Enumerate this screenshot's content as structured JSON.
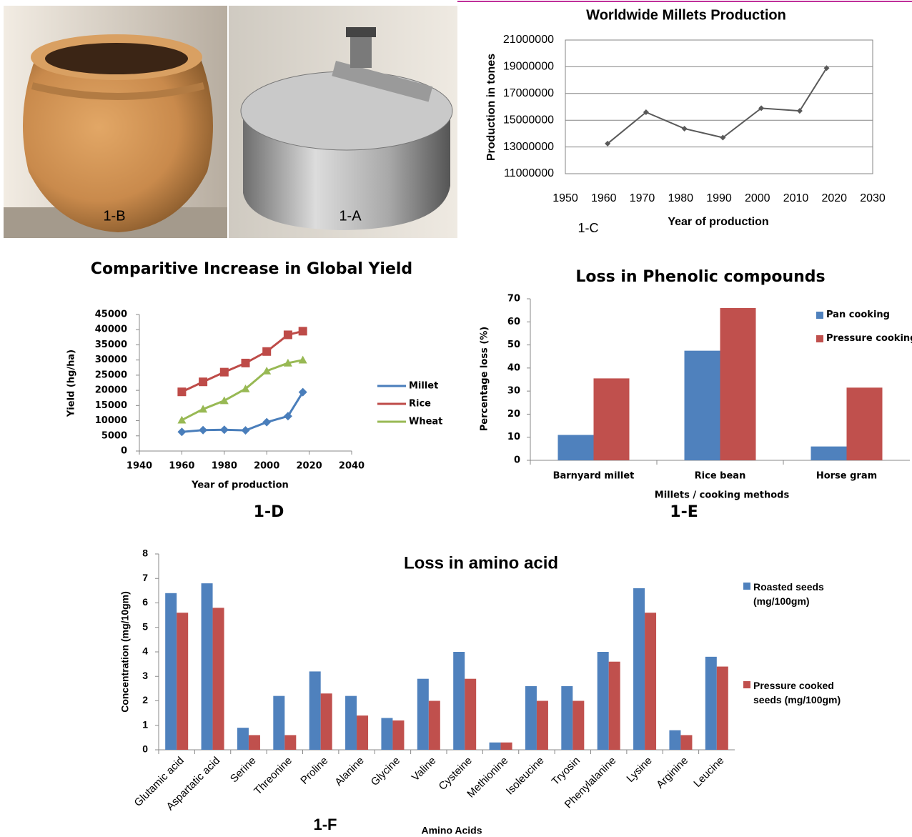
{
  "photos": [
    {
      "label": "1-B"
    },
    {
      "label": "1-A"
    }
  ],
  "chart_data": [
    {
      "type": "line",
      "title": "Worldwide Millets Production",
      "y_label": "Production in tones",
      "x_label": "Year of production",
      "caption": "1-C",
      "x": [
        1961,
        1971,
        1981,
        1991,
        2001,
        2011,
        2018
      ],
      "values": [
        13250000,
        15600000,
        14370000,
        13700000,
        15900000,
        15700000,
        18900000
      ],
      "color": "#595959",
      "xlim": [
        1950,
        2030
      ],
      "xticks": [
        1950,
        1960,
        1970,
        1980,
        1990,
        2000,
        2010,
        2020,
        2030
      ],
      "ylim": [
        11000000,
        21000000
      ],
      "yticks": [
        11000000,
        13000000,
        15000000,
        17000000,
        19000000,
        21000000
      ],
      "grid": true
    },
    {
      "type": "line",
      "title": "Comparitive Increase in Global Yield",
      "y_label": "Yield (hg/ha)",
      "x_label": "Year of production",
      "caption": "1-D",
      "x": [
        1960,
        1970,
        1980,
        1990,
        2000,
        2010,
        2017
      ],
      "series": [
        {
          "name": "Millet",
          "color": "#4a7ebb",
          "values": [
            6300,
            6900,
            7000,
            6800,
            9500,
            11500,
            19400
          ]
        },
        {
          "name": "Rice",
          "color": "#be4b48",
          "values": [
            19500,
            22800,
            26000,
            29000,
            32800,
            38300,
            39500
          ]
        },
        {
          "name": "Wheat",
          "color": "#98b954",
          "values": [
            10200,
            13800,
            16600,
            20500,
            26400,
            29000,
            30000
          ]
        }
      ],
      "xlim": [
        1940,
        2040
      ],
      "xticks": [
        1940,
        1960,
        1980,
        2000,
        2020,
        2040
      ],
      "ylim": [
        0,
        45000
      ],
      "yticks": [
        0,
        5000,
        10000,
        15000,
        20000,
        25000,
        30000,
        35000,
        40000,
        45000
      ],
      "grid": false,
      "legend": "right"
    },
    {
      "type": "bar",
      "title": "Loss in Phenolic compounds",
      "y_label": "Percentage loss (%)",
      "x_label": "Millets / cooking methods",
      "caption": "1-E",
      "categories": [
        "Barnyard millet",
        "Rice bean",
        "Horse gram"
      ],
      "series": [
        {
          "name": "Pan cooking",
          "color": "#4f81bd",
          "values": [
            11,
            47.5,
            6
          ]
        },
        {
          "name": "Pressure cooking",
          "color": "#c0504d",
          "values": [
            35.5,
            66,
            31.5
          ]
        }
      ],
      "ylim": [
        0,
        70
      ],
      "yticks": [
        0,
        10,
        20,
        30,
        40,
        50,
        60,
        70
      ],
      "grid": false,
      "legend": "right"
    },
    {
      "type": "bar",
      "title": "Loss in amino acid",
      "y_label": "Concentration (mg/10gm)",
      "x_label": "Amino Acids",
      "caption": "1-F",
      "categories": [
        "Glutamic acid",
        "Aspartatic acid",
        "Serine",
        "Threonine",
        "Proline",
        "Alanine",
        "Glycine",
        "Valine",
        "Cysteine",
        "Methionine",
        "Isoleucine",
        "Tryosin",
        "Phenylalanine",
        "Lysine",
        "Arginine",
        "Leucine"
      ],
      "series": [
        {
          "name": "Roasted seeds (mg/100gm)",
          "color": "#4f81bd",
          "values": [
            6.4,
            6.8,
            0.9,
            2.2,
            3.2,
            2.2,
            1.3,
            2.9,
            4.0,
            0.3,
            2.6,
            2.6,
            4.0,
            6.6,
            0.8,
            3.8
          ]
        },
        {
          "name": "Pressure cooked seeds (mg/100gm)",
          "color": "#c0504d",
          "values": [
            5.6,
            5.8,
            0.6,
            0.6,
            2.3,
            1.4,
            1.2,
            2.0,
            2.9,
            0.3,
            2.0,
            2.0,
            3.6,
            5.6,
            0.6,
            3.4
          ]
        }
      ],
      "ylim": [
        0,
        8
      ],
      "yticks": [
        0,
        1,
        2,
        3,
        4,
        5,
        6,
        7,
        8
      ],
      "grid": false,
      "legend": "right"
    }
  ]
}
